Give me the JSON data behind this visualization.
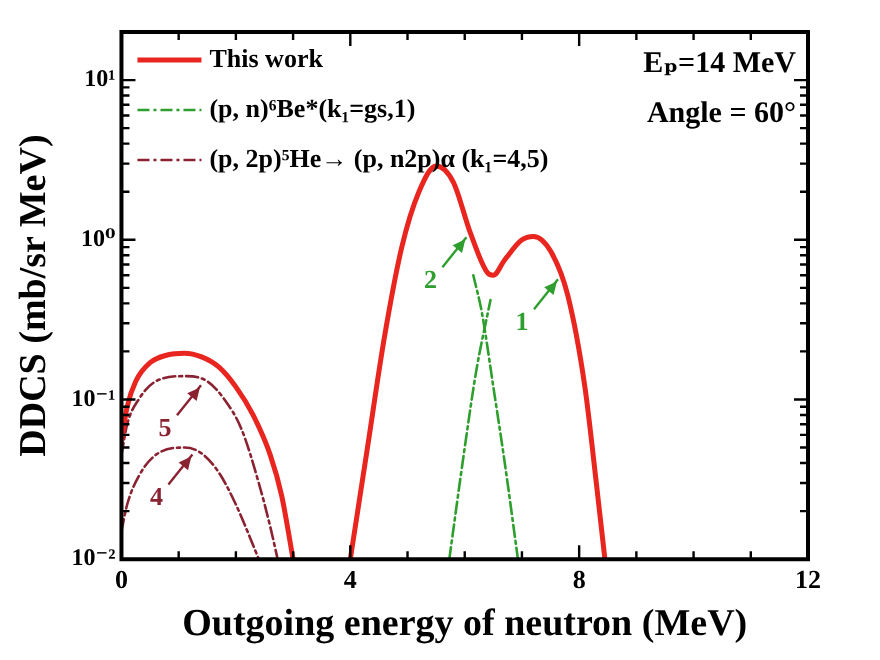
{
  "chart_data": {
    "type": "line",
    "xlabel": "Outgoing energy of neutron (MeV)",
    "ylabel": "DDCS (mb/sr MeV)",
    "xlim": [
      0,
      12
    ],
    "xticks": [
      0,
      {
        "value": 1,
        "label": null
      },
      {
        "value": 2,
        "label": null
      },
      {
        "value": 3,
        "label": null
      },
      4,
      {
        "value": 5,
        "label": null
      },
      {
        "value": 6,
        "label": null
      },
      {
        "value": 7,
        "label": null
      },
      8,
      {
        "value": 9,
        "label": null
      },
      {
        "value": 10,
        "label": null
      },
      {
        "value": 11,
        "label": null
      },
      12
    ],
    "ylim": [
      0.01,
      20
    ],
    "yticks": [
      {
        "value": 0.01,
        "label": "10⁻²"
      },
      {
        "value": 0.1,
        "label": "10⁻¹"
      },
      {
        "value": 1,
        "label": "10⁰"
      },
      {
        "value": 10,
        "label": "10¹"
      }
    ],
    "log": "y",
    "grid": false,
    "legend": "top left",
    "marker": "none",
    "series": [
      {
        "name": "This work",
        "color": "#e8251f",
        "line_style": "solid",
        "x": [
          0,
          0.1,
          0.25,
          0.5,
          0.8,
          1.1,
          1.4,
          1.7,
          2.0,
          2.3,
          2.6,
          2.8,
          3.0,
          3.5,
          4.0,
          4.3,
          4.6,
          4.9,
          5.2,
          5.5,
          5.8,
          6.1,
          6.4,
          6.5,
          6.7,
          7.0,
          7.2,
          7.5,
          7.8,
          8.1,
          8.3,
          8.45
        ],
        "values": [
          0.055,
          0.09,
          0.13,
          0.17,
          0.19,
          0.195,
          0.185,
          0.16,
          0.12,
          0.08,
          0.045,
          0.025,
          0.01,
          null,
          0.01,
          0.05,
          0.25,
          0.9,
          2.0,
          2.9,
          2.3,
          1.1,
          0.62,
          0.6,
          0.75,
          1.0,
          1.05,
          0.85,
          0.45,
          0.12,
          0.03,
          0.01
        ]
      },
      {
        "name": "(p, n)⁶Be*(k₁=gs,1)",
        "color": "#2e9e2e",
        "line_style": "dashdot",
        "x": [
          5.73,
          6.0,
          6.2,
          6.45
        ],
        "values": [
          0.01,
          0.05,
          0.15,
          0.42
        ]
      },
      {
        "color": "#2e9e2e",
        "line_style": "dashdot",
        "x": [
          6.15,
          6.3,
          6.5,
          6.7,
          6.93
        ],
        "values": [
          0.6,
          0.35,
          0.12,
          0.04,
          0.01
        ]
      },
      {
        "name": "(p, 2p)⁵He→ (p, n2p)α (k₁=4,5)",
        "color": "#8b2232",
        "line_style": "dashdot",
        "x": [
          0,
          0.1,
          0.3,
          0.6,
          1.1,
          1.4,
          1.7,
          2.0,
          2.2,
          2.4
        ],
        "values": [
          0.015,
          0.022,
          0.033,
          0.045,
          0.05,
          0.046,
          0.035,
          0.022,
          0.015,
          0.01
        ]
      },
      {
        "color": "#8b2232",
        "line_style": "dashdot",
        "x": [
          0,
          0.1,
          0.3,
          0.6,
          1.1,
          1.5,
          1.8,
          2.1,
          2.4,
          2.6,
          2.73
        ],
        "values": [
          0.045,
          0.07,
          0.1,
          0.13,
          0.14,
          0.13,
          0.1,
          0.065,
          0.03,
          0.016,
          0.01
        ]
      }
    ],
    "annotations": [
      "Eₚ=14 MeV",
      "Angle = 60°",
      {
        "text": "1",
        "x": 7.7,
        "y": 0.6
      },
      {
        "text": "2",
        "x": 6.1,
        "y": 1.1
      },
      {
        "text": "4",
        "x": 1.31,
        "y": 0.048
      },
      {
        "text": "5",
        "x": 1.46,
        "y": 0.13
      }
    ]
  }
}
